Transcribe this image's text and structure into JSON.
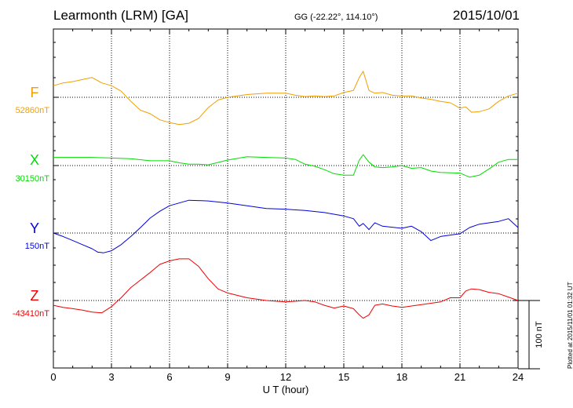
{
  "header": {
    "station": "Learmonth (LRM)  [GA]",
    "coords": "GG (-22.22°, 114.10°)",
    "date": "2015/10/01"
  },
  "plotted_note": "Plotted at 2015/11/01 01:32 UT",
  "colors": {
    "F": "#f0a000",
    "X": "#00dd00",
    "Y": "#0000dd",
    "Z": "#ee0000",
    "grid": "#000000"
  },
  "chart_data": {
    "type": "line",
    "title": "Learmonth (LRM)  [GA]",
    "xlabel": "U T (hour)",
    "ylabel": "",
    "x_ticks": [
      0,
      3,
      6,
      9,
      12,
      15,
      18,
      21,
      24
    ],
    "xlim": [
      0,
      24
    ],
    "scale_bar": {
      "label": "100 nT",
      "value_nT": 100
    },
    "series": [
      {
        "name": "F",
        "baseline_label": "52860nT",
        "baseline": 52860,
        "x": [
          0,
          0.5,
          1,
          1.5,
          2,
          2.5,
          3,
          3.5,
          4,
          4.5,
          5,
          5.5,
          6,
          6.5,
          7,
          7.5,
          8,
          8.5,
          9,
          10,
          11,
          12,
          12.5,
          13,
          13.5,
          14,
          14.5,
          15,
          15.5,
          15.8,
          16,
          16.3,
          16.6,
          17,
          17.5,
          18,
          18.5,
          19,
          19.5,
          20,
          20.5,
          21,
          21.3,
          21.6,
          22,
          22.5,
          23,
          23.5,
          24
        ],
        "values": [
          52877,
          52881,
          52883,
          52886,
          52889,
          52881,
          52877,
          52869,
          52854,
          52841,
          52836,
          52827,
          52823,
          52820,
          52822,
          52829,
          52845,
          52856,
          52860,
          52864,
          52866,
          52866,
          52863,
          52861,
          52862,
          52861,
          52862,
          52867,
          52870,
          52889,
          52898,
          52870,
          52866,
          52867,
          52863,
          52862,
          52862,
          52859,
          52857,
          52854,
          52852,
          52844,
          52846,
          52838,
          52839,
          52843,
          52854,
          52862,
          52866
        ]
      },
      {
        "name": "X",
        "baseline_label": "30150nT",
        "baseline": 30150,
        "x": [
          0,
          1,
          2,
          3,
          4,
          5,
          6,
          6.5,
          7,
          7.5,
          8,
          9,
          10,
          11,
          12,
          12.5,
          13,
          13.5,
          14,
          14.5,
          15,
          15.5,
          15.8,
          16,
          16.3,
          16.6,
          17,
          17.5,
          18,
          18.5,
          19,
          19.5,
          20,
          21,
          21.5,
          22,
          22.5,
          23,
          23.5,
          24
        ],
        "values": [
          30162,
          30162,
          30162,
          30161,
          30160,
          30157,
          30157,
          30154,
          30152,
          30152,
          30151,
          30158,
          30163,
          30162,
          30161,
          30159,
          30152,
          30149,
          30144,
          30138,
          30136,
          30136,
          30158,
          30166,
          30155,
          30148,
          30147,
          30148,
          30150,
          30146,
          30147,
          30142,
          30140,
          30139,
          30133,
          30136,
          30145,
          30155,
          30159,
          30159
        ]
      },
      {
        "name": "Y",
        "baseline_label": "150nT",
        "baseline": 150,
        "x": [
          0,
          0.5,
          1,
          1.5,
          2,
          2.3,
          2.6,
          3,
          3.5,
          4,
          4.5,
          5,
          5.5,
          6,
          6.5,
          7,
          8,
          9,
          10,
          11,
          12,
          13,
          14,
          15,
          15.5,
          15.8,
          16,
          16.3,
          16.6,
          17,
          18,
          18.5,
          19,
          19.5,
          20,
          21,
          21.5,
          22,
          23,
          23.5,
          24
        ],
        "values": [
          150,
          145,
          139,
          133,
          127,
          122,
          121,
          124,
          133,
          145,
          158,
          172,
          182,
          190,
          194,
          198,
          197,
          194,
          190,
          186,
          185,
          183,
          180,
          175,
          171,
          160,
          164,
          155,
          165,
          160,
          157,
          160,
          152,
          139,
          145,
          149,
          158,
          163,
          167,
          171,
          158
        ]
      },
      {
        "name": "Z",
        "baseline_label": "-43410nT",
        "baseline": -43410,
        "x": [
          0,
          0.5,
          1,
          1.5,
          2,
          2.5,
          3,
          3.5,
          4,
          4.5,
          5,
          5.5,
          6,
          6.5,
          7,
          7.5,
          8,
          8.5,
          9,
          10,
          11,
          12,
          13,
          13.5,
          14,
          14.5,
          15,
          15.5,
          15.8,
          16,
          16.3,
          16.6,
          17,
          17.5,
          18,
          19,
          20,
          20.5,
          21,
          21.3,
          21.6,
          22,
          22.5,
          23,
          23.5,
          24
        ],
        "values": [
          -43417,
          -43420,
          -43422,
          -43424,
          -43427,
          -43428,
          -43419,
          -43406,
          -43391,
          -43380,
          -43369,
          -43357,
          -43352,
          -43349,
          -43349,
          -43360,
          -43378,
          -43393,
          -43399,
          -43406,
          -43410,
          -43412,
          -43410,
          -43412,
          -43417,
          -43421,
          -43418,
          -43422,
          -43431,
          -43436,
          -43431,
          -43417,
          -43415,
          -43418,
          -43420,
          -43416,
          -43412,
          -43406,
          -43406,
          -43396,
          -43393,
          -43394,
          -43398,
          -43400,
          -43405,
          -43410
        ]
      }
    ]
  }
}
